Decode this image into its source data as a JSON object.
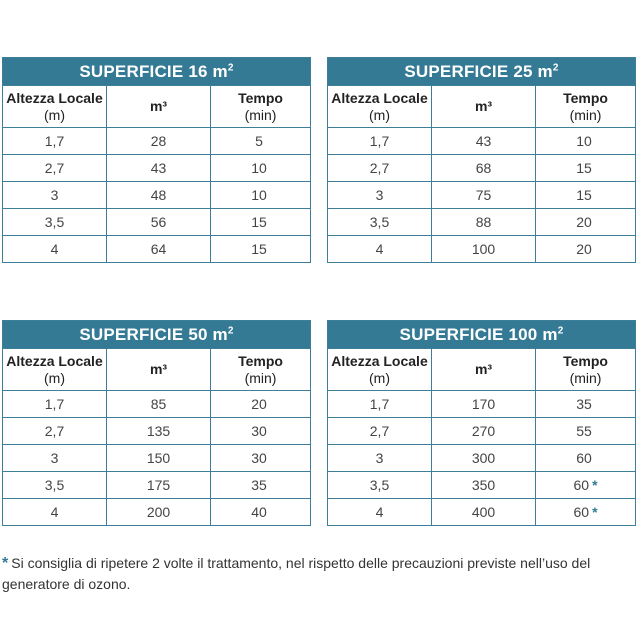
{
  "headers": {
    "col1_line1": "Altezza Locale",
    "col1_line2": "(m)",
    "col2": "m³",
    "col3_line1": "Tempo",
    "col3_line2": "(min)"
  },
  "tables": [
    {
      "title": "SUPERFICIE 16 m",
      "title_sup": "2",
      "rows": [
        {
          "h": "1,7",
          "m3": "28",
          "t": "5",
          "star": ""
        },
        {
          "h": "2,7",
          "m3": "43",
          "t": "10",
          "star": ""
        },
        {
          "h": "3",
          "m3": "48",
          "t": "10",
          "star": ""
        },
        {
          "h": "3,5",
          "m3": "56",
          "t": "15",
          "star": ""
        },
        {
          "h": "4",
          "m3": "64",
          "t": "15",
          "star": ""
        }
      ]
    },
    {
      "title": "SUPERFICIE 25 m",
      "title_sup": "2",
      "rows": [
        {
          "h": "1,7",
          "m3": "43",
          "t": "10",
          "star": ""
        },
        {
          "h": "2,7",
          "m3": "68",
          "t": "15",
          "star": ""
        },
        {
          "h": "3",
          "m3": "75",
          "t": "15",
          "star": ""
        },
        {
          "h": "3,5",
          "m3": "88",
          "t": "20",
          "star": ""
        },
        {
          "h": "4",
          "m3": "100",
          "t": "20",
          "star": ""
        }
      ]
    },
    {
      "title": "SUPERFICIE 50 m",
      "title_sup": "2",
      "rows": [
        {
          "h": "1,7",
          "m3": "85",
          "t": "20",
          "star": ""
        },
        {
          "h": "2,7",
          "m3": "135",
          "t": "30",
          "star": ""
        },
        {
          "h": "3",
          "m3": "150",
          "t": "30",
          "star": ""
        },
        {
          "h": "3,5",
          "m3": "175",
          "t": "35",
          "star": ""
        },
        {
          "h": "4",
          "m3": "200",
          "t": "40",
          "star": ""
        }
      ]
    },
    {
      "title": "SUPERFICIE 100 m",
      "title_sup": "2",
      "rows": [
        {
          "h": "1,7",
          "m3": "170",
          "t": "35",
          "star": ""
        },
        {
          "h": "2,7",
          "m3": "270",
          "t": "55",
          "star": ""
        },
        {
          "h": "3",
          "m3": "300",
          "t": "60",
          "star": ""
        },
        {
          "h": "3,5",
          "m3": "350",
          "t": "60",
          "star": "*"
        },
        {
          "h": "4",
          "m3": "400",
          "t": "60",
          "star": "*"
        }
      ]
    }
  ],
  "footnote": {
    "marker": "*",
    "text": "Si consiglia di ripetere 2 volte il trattamento, nel rispetto delle precauzioni previste nell’uso del generatore di ozono."
  }
}
